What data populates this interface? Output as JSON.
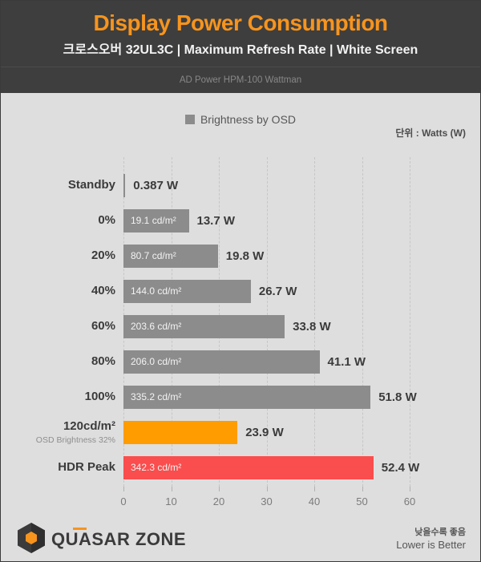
{
  "header": {
    "title": "Display Power Consumption",
    "subtitle": "크로스오버 32UL3C  |  Maximum Refresh Rate  |  White Screen",
    "meter": "AD Power HPM-100 Wattman"
  },
  "legend": {
    "label": "Brightness by OSD",
    "swatch_color": "#8C8C8C"
  },
  "unit_label": "단위 : Watts (W)",
  "chart_data": {
    "type": "bar",
    "orientation": "horizontal",
    "title": "Display Power Consumption",
    "xlabel": "Watts (W)",
    "ylabel": "Brightness by OSD",
    "xlim": [
      0,
      60
    ],
    "x_ticks": [
      0,
      10,
      20,
      30,
      40,
      50,
      60
    ],
    "grid": "dashed-vertical",
    "legend_position": "top-center",
    "rows": [
      {
        "label": "Standby",
        "sub_label": "",
        "value": 0.387,
        "value_label": "0.387 W",
        "bar_label": "",
        "color": "#8C8C8C"
      },
      {
        "label": "0%",
        "sub_label": "",
        "value": 13.7,
        "value_label": "13.7 W",
        "bar_label": "19.1 cd/m²",
        "color": "#8C8C8C"
      },
      {
        "label": "20%",
        "sub_label": "",
        "value": 19.8,
        "value_label": "19.8 W",
        "bar_label": "80.7 cd/m²",
        "color": "#8C8C8C"
      },
      {
        "label": "40%",
        "sub_label": "",
        "value": 26.7,
        "value_label": "26.7 W",
        "bar_label": "144.0 cd/m²",
        "color": "#8C8C8C"
      },
      {
        "label": "60%",
        "sub_label": "",
        "value": 33.8,
        "value_label": "33.8 W",
        "bar_label": "203.6 cd/m²",
        "color": "#8C8C8C"
      },
      {
        "label": "80%",
        "sub_label": "",
        "value": 41.1,
        "value_label": "41.1 W",
        "bar_label": "206.0 cd/m²",
        "color": "#8C8C8C"
      },
      {
        "label": "100%",
        "sub_label": "",
        "value": 51.8,
        "value_label": "51.8 W",
        "bar_label": "335.2 cd/m²",
        "color": "#8C8C8C"
      },
      {
        "label": "120cd/m²",
        "sub_label": "OSD Brightness 32%",
        "value": 23.9,
        "value_label": "23.9 W",
        "bar_label": "",
        "color": "#FF9C00"
      },
      {
        "label": "HDR Peak",
        "sub_label": "",
        "value": 52.4,
        "value_label": "52.4 W",
        "bar_label": "342.3 cd/m²",
        "color": "#FA4D4D"
      }
    ],
    "colors": {
      "default_bar": "#8C8C8C",
      "highlight_orange": "#FF9C00",
      "highlight_red": "#FA4D4D",
      "accent": "#F7941D"
    }
  },
  "footer": {
    "brand": "QUASAR ZONE",
    "note_ko": "낮을수록 좋음",
    "note_en": "Lower is Better"
  }
}
